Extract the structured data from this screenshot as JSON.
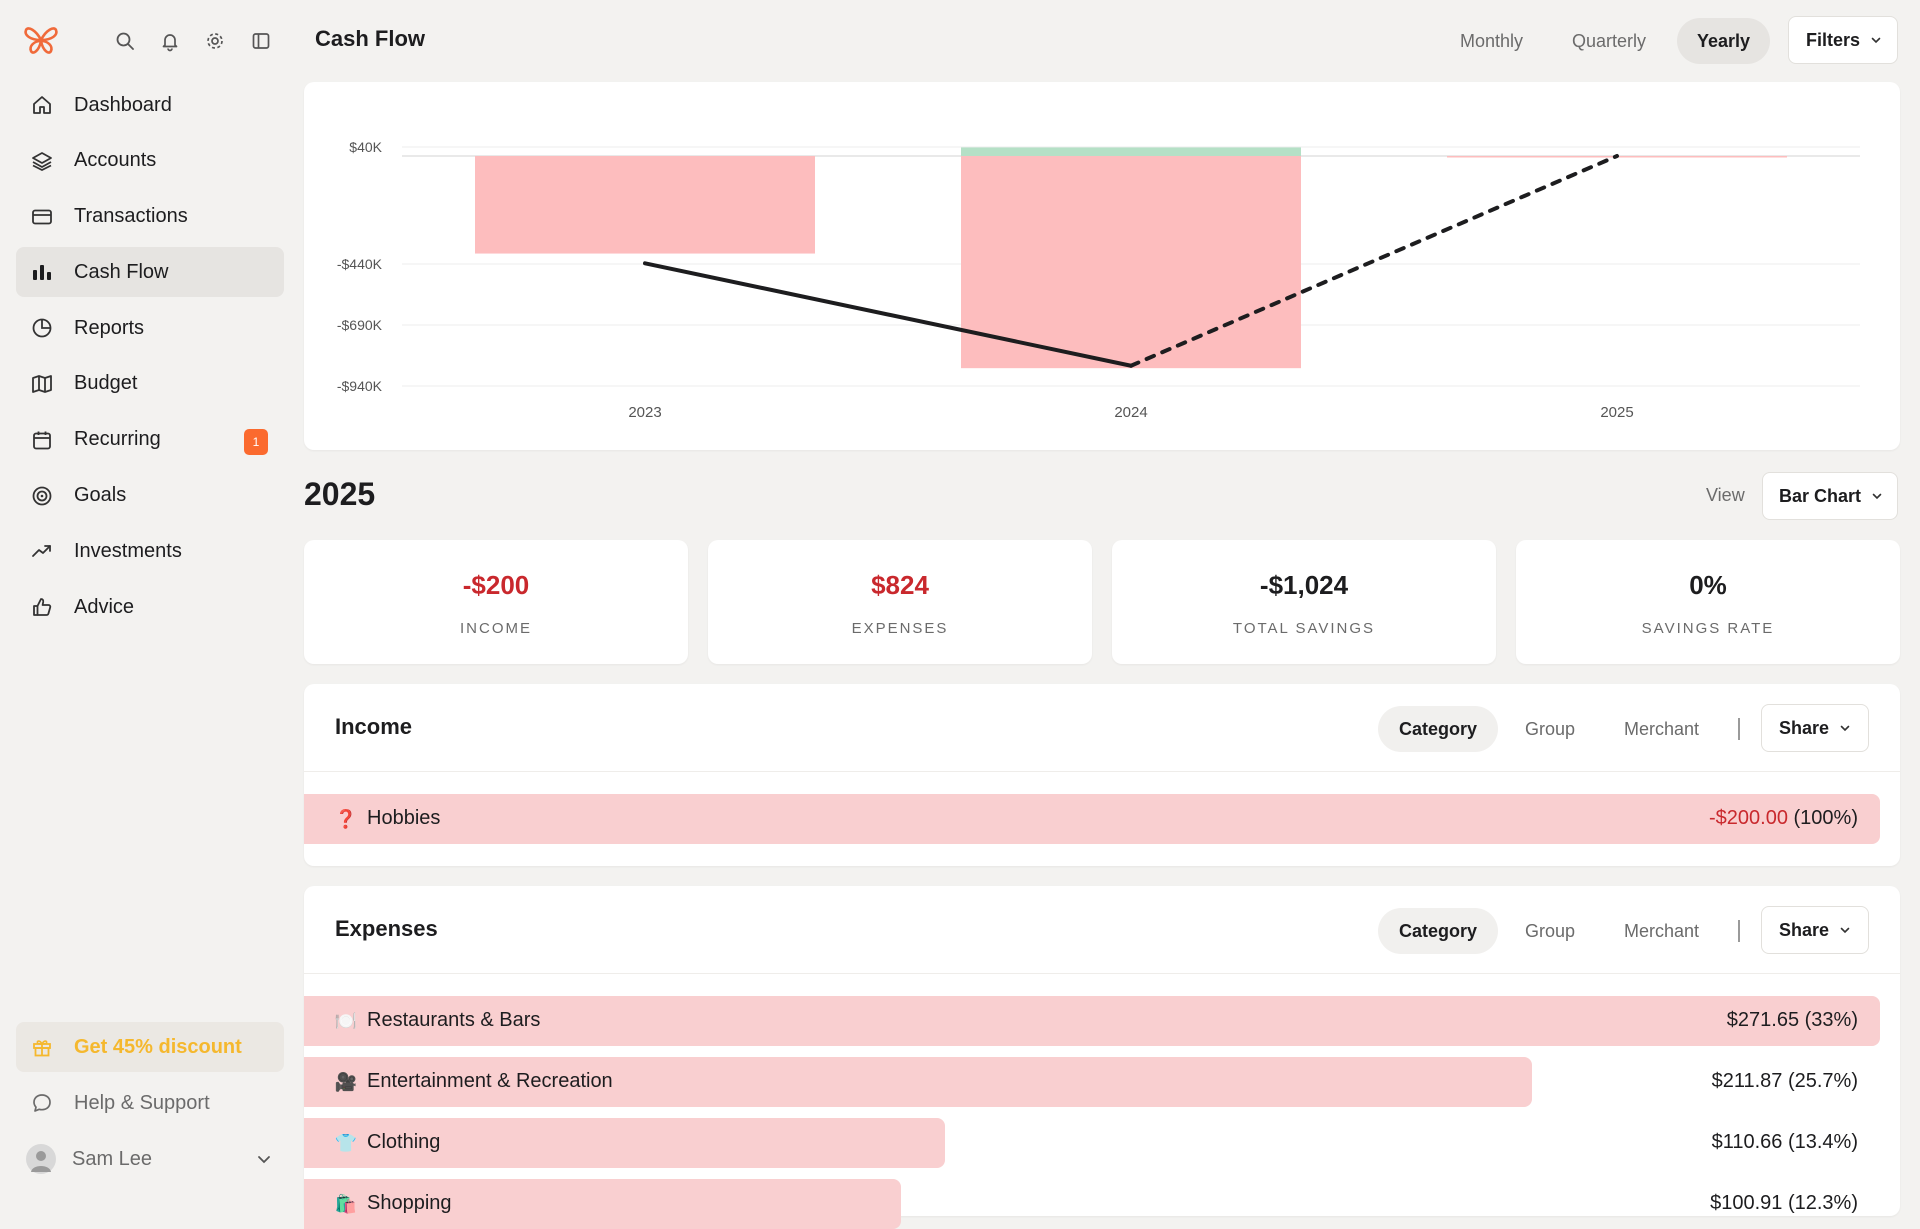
{
  "sidebar": {
    "nav": [
      {
        "label": "Dashboard",
        "icon": "home-icon",
        "active": false
      },
      {
        "label": "Accounts",
        "icon": "layers-icon",
        "active": false
      },
      {
        "label": "Transactions",
        "icon": "credit-card-icon",
        "active": false
      },
      {
        "label": "Cash Flow",
        "icon": "bar-chart-icon",
        "active": true
      },
      {
        "label": "Reports",
        "icon": "pie-chart-icon",
        "active": false
      },
      {
        "label": "Budget",
        "icon": "map-icon",
        "active": false
      },
      {
        "label": "Recurring",
        "icon": "calendar-icon",
        "active": false,
        "badge": "1"
      },
      {
        "label": "Goals",
        "icon": "target-icon",
        "active": false
      },
      {
        "label": "Investments",
        "icon": "trending-up-icon",
        "active": false
      },
      {
        "label": "Advice",
        "icon": "thumbs-up-icon",
        "active": false
      }
    ],
    "promo_label": "Get 45% discount",
    "help_label": "Help & Support",
    "user_name": "Sam Lee"
  },
  "header": {
    "title": "Cash Flow",
    "periods": [
      "Monthly",
      "Quarterly",
      "Yearly"
    ],
    "active_period": "Yearly",
    "filters_label": "Filters"
  },
  "chart_data": {
    "type": "bar",
    "categories": [
      "2023",
      "2024",
      "2025"
    ],
    "y_ticks": [
      "$40K",
      "-$440K",
      "-$690K",
      "-$940K"
    ],
    "series": [
      {
        "kind": "expense-bar",
        "values": [
          -400,
          -870,
          -1
        ]
      },
      {
        "kind": "income-bar",
        "values": [
          0,
          35,
          0
        ]
      },
      {
        "kind": "net-line",
        "values": [
          -440,
          -860,
          0
        ],
        "dashed_from_index": 1
      }
    ],
    "colors": {
      "expense": "#fdbdbe",
      "income": "#b5e0c6",
      "line": "#1d1d1f"
    },
    "grid": true
  },
  "summary": {
    "year": "2025",
    "view_label": "View",
    "view_value": "Bar Chart",
    "cards": [
      {
        "value": "-$200",
        "label": "INCOME",
        "negative": true
      },
      {
        "value": "$824",
        "label": "EXPENSES",
        "negative": true
      },
      {
        "value": "-$1,024",
        "label": "TOTAL SAVINGS",
        "negative": false
      },
      {
        "value": "0%",
        "label": "SAVINGS RATE",
        "negative": false
      }
    ]
  },
  "income": {
    "title": "Income",
    "tabs": [
      "Category",
      "Group",
      "Merchant"
    ],
    "active_tab": "Category",
    "share_label": "Share",
    "rows": [
      {
        "icon": "❓",
        "label": "Hobbies",
        "amount": "-$200.00",
        "pct": "(100%)",
        "fraction": 1.0,
        "negative": true
      }
    ]
  },
  "expenses": {
    "title": "Expenses",
    "tabs": [
      "Category",
      "Group",
      "Merchant"
    ],
    "active_tab": "Category",
    "share_label": "Share",
    "rows": [
      {
        "icon": "🍽️",
        "label": "Restaurants & Bars",
        "amount": "$271.65",
        "pct": "(33%)",
        "fraction": 1.0
      },
      {
        "icon": "🎥",
        "label": "Entertainment & Recreation",
        "amount": "$211.87",
        "pct": "(25.7%)",
        "fraction": 0.779
      },
      {
        "icon": "👕",
        "label": "Clothing",
        "amount": "$110.66",
        "pct": "(13.4%)",
        "fraction": 0.407
      },
      {
        "icon": "🛍️",
        "label": "Shopping",
        "amount": "$100.91",
        "pct": "(12.3%)",
        "fraction": 0.379
      }
    ]
  }
}
